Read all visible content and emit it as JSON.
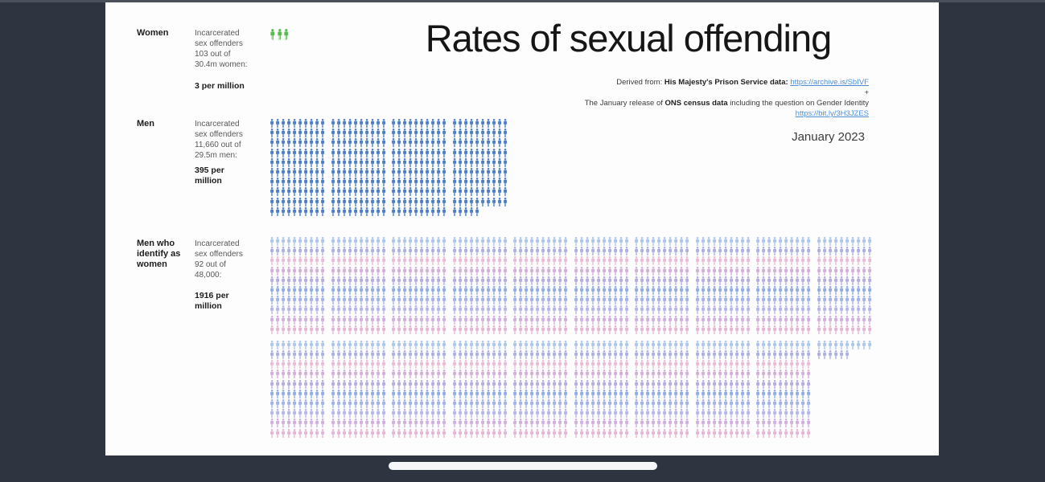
{
  "title": "Rates of sexual offending",
  "source": {
    "derived_prefix": "Derived from: ",
    "derived_bold": "His Majesty's Prison Service data: ",
    "derived_link": "https://archive.is/SbIVF",
    "plus": "+",
    "ons_prefix": "The January release of ",
    "ons_bold": "ONS census data",
    "ons_suffix": " including the question on Gender Identity",
    "ons_link": "https://bit.ly/3H3JZES",
    "date": "January 2023"
  },
  "chart_data": {
    "type": "pictogram",
    "title": "Rates of sexual offending",
    "unit": "incarcerated sex offenders per million",
    "groups": [
      {
        "label": "Women",
        "description": "Incarcerated\nsex offenders\n103 out of\n30.4m women:",
        "rate_label": "3 per million",
        "count": 103,
        "population": "30.4m",
        "rate_per_million": 3,
        "icons_total": 3,
        "cols": 10,
        "icon_color": "#57b94f",
        "bands": [
          [
            3
          ]
        ]
      },
      {
        "label": "Men",
        "description": "Incarcerated\nsex offenders\n11,660 out of\n29.5m men:",
        "rate_label": "395 per\nmillion",
        "count": 11660,
        "population": "29.5m",
        "rate_per_million": 395,
        "icons_total": 395,
        "cols": 10,
        "icon_color": "#4d7ec8",
        "bands": [
          [
            100,
            100,
            100,
            95
          ]
        ]
      },
      {
        "label": "Men who\nidentify as\nwomen",
        "description": "Incarcerated\nsex offenders\n92 out of\n48,000:",
        "rate_label": "1916 per\nmillion",
        "count": 92,
        "population": "48,000",
        "rate_per_million": 1916,
        "icons_total": 1916,
        "cols": 10,
        "row_colors": [
          "#adc6ec",
          "#adb0e2",
          "#e8bcd8",
          "#d2b0da",
          "#b6ace0",
          "#92ace8",
          "#a2b2ea",
          "#b6b6ec",
          "#d0b0dc",
          "#e4b6d6"
        ],
        "bands": [
          [
            100,
            100,
            100,
            100,
            100,
            100,
            100,
            100,
            100,
            100
          ],
          [
            100,
            100,
            100,
            100,
            100,
            100,
            100,
            100,
            100,
            16
          ]
        ]
      }
    ]
  }
}
